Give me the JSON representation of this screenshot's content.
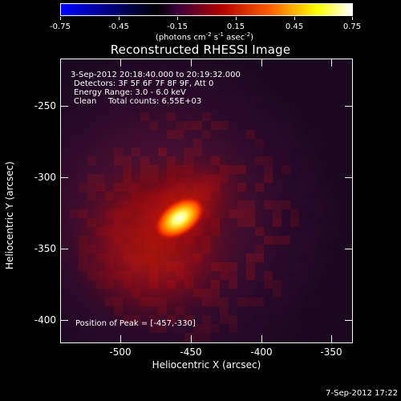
{
  "colorbar": {
    "tick_labels": [
      "-0.75",
      "-0.45",
      "-0.15",
      "0.15",
      "0.45",
      "0.75"
    ],
    "units_text": "(photons cm",
    "units_sup1": "-2",
    "units_mid1": " s",
    "units_sup2": "-1",
    "units_mid2": " asec",
    "units_sup3": "-2",
    "units_end": ")",
    "colors": [
      "#0000ff",
      "#000000",
      "#3a003a",
      "#b00000",
      "#ff6000",
      "#ffff00",
      "#ffffff"
    ]
  },
  "plot": {
    "title": "Reconstructed RHESSI Image",
    "info": {
      "time": "3-Sep-2012 20:18:40.000 to 20:19:32.000",
      "detectors": "Detectors: 3F 5F 6F 7F 8F 9F, Att 0",
      "energy": "Energy Range: 3.0 - 6.0 keV",
      "method": "Clean",
      "counts": "Total counts: 6.55E+03",
      "peak": "Position of Peak = [-457,-330]"
    },
    "x_axis": {
      "title": "Heliocentric X (arcsec)",
      "tick_labels": [
        "-500",
        "-450",
        "-400",
        "-350"
      ]
    },
    "y_axis": {
      "title": "Heliocentric Y (arcsec)",
      "tick_labels": [
        "-250",
        "-300",
        "-350",
        "-400"
      ]
    }
  },
  "timestamp": "7-Sep-2012 17:22"
}
